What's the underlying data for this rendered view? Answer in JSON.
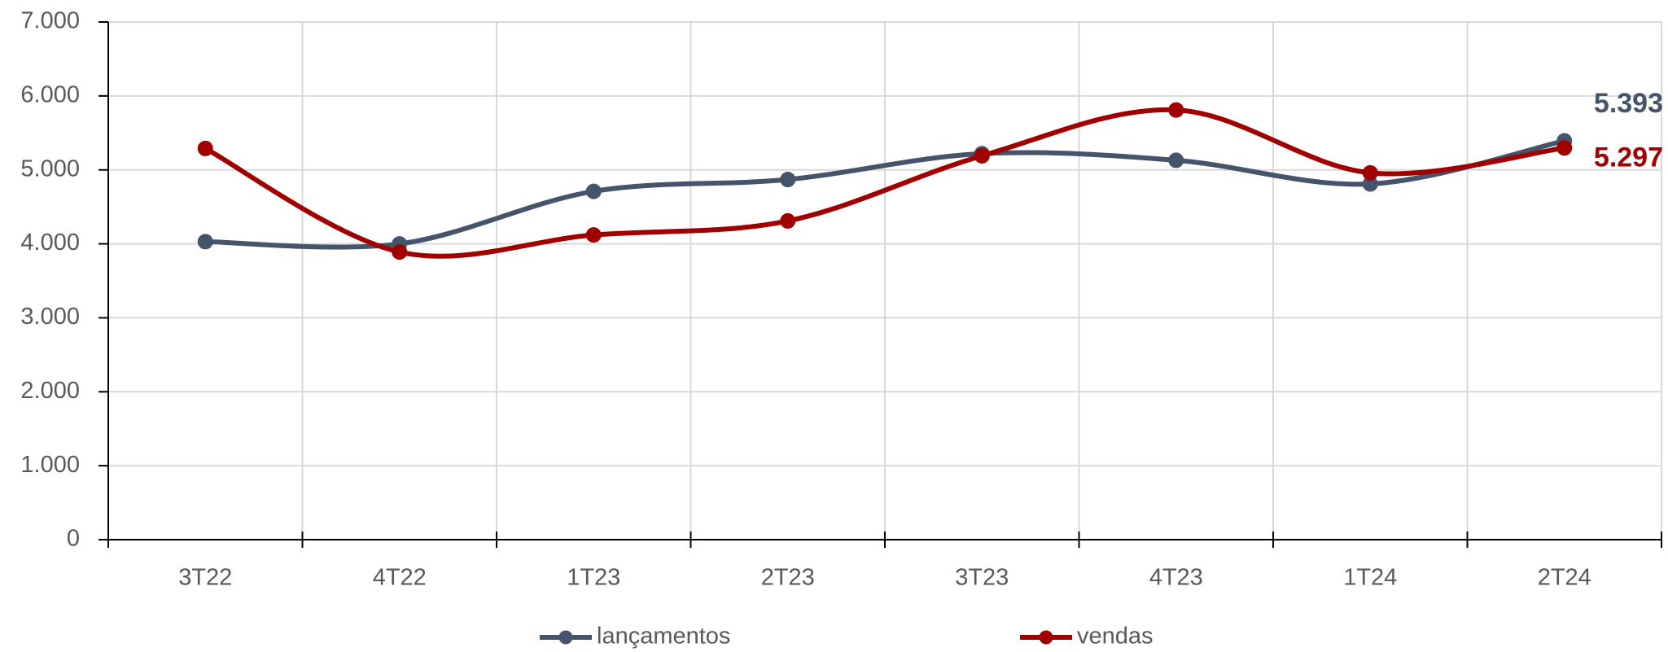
{
  "chart_data": {
    "type": "line",
    "categories": [
      "3T22",
      "4T22",
      "1T23",
      "2T23",
      "3T23",
      "4T23",
      "1T24",
      "2T24"
    ],
    "series": [
      {
        "name": "lançamentos",
        "color": "#44546a",
        "values": [
          4030,
          4000,
          4710,
          4870,
          5220,
          5130,
          4810,
          5393
        ],
        "value_labels": [
          null,
          null,
          null,
          null,
          null,
          null,
          null,
          "5.393"
        ]
      },
      {
        "name": "vendas",
        "color": "#a00000",
        "values": [
          5290,
          3890,
          4120,
          4310,
          5190,
          5810,
          4960,
          5297
        ],
        "value_labels": [
          null,
          null,
          null,
          null,
          null,
          null,
          null,
          "5.297"
        ]
      }
    ],
    "ylim": [
      0,
      7000
    ],
    "yticks": [
      0,
      {
        "value": 1000,
        "label": "1.000"
      },
      {
        "value": 2000,
        "label": "2.000"
      },
      {
        "value": 3000,
        "label": "3.000"
      },
      {
        "value": 4000,
        "label": "4.000"
      },
      {
        "value": 5000,
        "label": "5.000"
      },
      {
        "value": 6000,
        "label": "6.000"
      },
      {
        "value": 7000,
        "label": "7.000"
      }
    ],
    "grid": true,
    "legend": "bottom"
  }
}
